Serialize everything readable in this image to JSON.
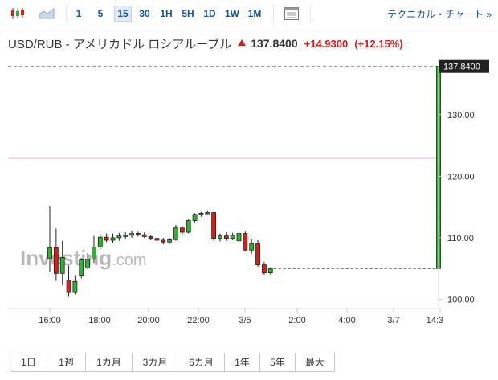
{
  "toolbar": {
    "intervals": [
      "1",
      "5",
      "15",
      "30",
      "1H",
      "5H",
      "1D",
      "1W",
      "1M"
    ],
    "active_interval": "15",
    "technical_link": "テクニカル・チャート »"
  },
  "quote": {
    "symbol": "USD/RUB - アメリカドル ロシアルーブル",
    "last": "137.8400",
    "change": "+14.9300",
    "change_pct": "(+12.15%)"
  },
  "colors": {
    "up": "#2bb52b",
    "down": "#d91e18",
    "accent": "#1256a0"
  },
  "watermark": {
    "text": "Investing.com"
  },
  "chart_data": {
    "type": "candlestick",
    "y_ticks": [
      "130.00",
      "120.00",
      "110.00",
      "100.00"
    ],
    "y_range": [
      98.5,
      139.5
    ],
    "x_ticks": [
      "16:00",
      "18:00",
      "20:00",
      "22:00",
      "3/5",
      "2:00",
      "4:00",
      "3/7",
      "14:3"
    ],
    "last_price_label": "137.8400",
    "last_price": 137.84,
    "previous_close_line": 122.9,
    "candles": [
      {
        "o": 106.6,
        "h": 115.1,
        "l": 104.5,
        "c": 108.4
      },
      {
        "o": 108.4,
        "h": 111.5,
        "l": 103.0,
        "c": 104.2
      },
      {
        "o": 104.2,
        "h": 109.5,
        "l": 102.3,
        "c": 106.8
      },
      {
        "o": 103.1,
        "h": 105.5,
        "l": 100.4,
        "c": 101.1
      },
      {
        "o": 101.1,
        "h": 103.9,
        "l": 100.8,
        "c": 102.9
      },
      {
        "o": 103.9,
        "h": 106.7,
        "l": 103.4,
        "c": 106.4
      },
      {
        "o": 105.1,
        "h": 107.5,
        "l": 104.9,
        "c": 106.5
      },
      {
        "o": 106.5,
        "h": 110.3,
        "l": 105.9,
        "c": 108.5
      },
      {
        "o": 108.5,
        "h": 110.6,
        "l": 108.1,
        "c": 110.1
      },
      {
        "o": 110.1,
        "h": 110.7,
        "l": 109.3,
        "c": 109.6
      },
      {
        "o": 109.6,
        "h": 110.7,
        "l": 109.2,
        "c": 110.0
      },
      {
        "o": 110.0,
        "h": 110.8,
        "l": 109.5,
        "c": 110.3
      },
      {
        "o": 110.3,
        "h": 110.9,
        "l": 109.8,
        "c": 110.4
      },
      {
        "o": 110.4,
        "h": 111.2,
        "l": 110.0,
        "c": 110.7
      },
      {
        "o": 110.7,
        "h": 111.0,
        "l": 110.2,
        "c": 110.5
      },
      {
        "o": 110.5,
        "h": 110.9,
        "l": 110.0,
        "c": 110.2
      },
      {
        "o": 110.2,
        "h": 110.5,
        "l": 109.6,
        "c": 109.9
      },
      {
        "o": 109.9,
        "h": 110.2,
        "l": 109.3,
        "c": 109.6
      },
      {
        "o": 109.6,
        "h": 110.0,
        "l": 108.9,
        "c": 109.3
      },
      {
        "o": 109.3,
        "h": 110.0,
        "l": 109.0,
        "c": 109.7
      },
      {
        "o": 109.7,
        "h": 112.1,
        "l": 109.5,
        "c": 111.6
      },
      {
        "o": 111.6,
        "h": 111.9,
        "l": 110.4,
        "c": 110.9
      },
      {
        "o": 110.9,
        "h": 113.1,
        "l": 110.7,
        "c": 112.8
      },
      {
        "o": 112.8,
        "h": 114.0,
        "l": 112.5,
        "c": 113.8
      },
      {
        "o": 113.8,
        "h": 114.2,
        "l": 113.4,
        "c": 114.0
      },
      {
        "o": 114.0,
        "h": 114.3,
        "l": 113.8,
        "c": 114.1
      },
      {
        "o": 114.1,
        "h": 114.2,
        "l": 109.5,
        "c": 109.9
      },
      {
        "o": 109.9,
        "h": 110.7,
        "l": 109.4,
        "c": 110.3
      },
      {
        "o": 110.3,
        "h": 110.9,
        "l": 109.5,
        "c": 109.9
      },
      {
        "o": 109.9,
        "h": 110.8,
        "l": 109.6,
        "c": 110.4
      },
      {
        "o": 109.5,
        "h": 112.3,
        "l": 108.9,
        "c": 110.7
      },
      {
        "o": 110.7,
        "h": 111.0,
        "l": 107.8,
        "c": 108.0
      },
      {
        "o": 108.0,
        "h": 109.8,
        "l": 107.4,
        "c": 109.0
      },
      {
        "o": 109.0,
        "h": 109.6,
        "l": 105.3,
        "c": 105.6
      },
      {
        "o": 105.6,
        "h": 106.1,
        "l": 104.0,
        "c": 104.3
      },
      {
        "o": 104.3,
        "h": 105.2,
        "l": 104.0,
        "c": 105.0
      }
    ],
    "spike_candle": {
      "o": 105.0,
      "h": 137.84,
      "l": 105.0,
      "c": 137.84
    }
  },
  "ranges": [
    "1日",
    "1週",
    "1カ月",
    "3カ月",
    "6カ月",
    "1年",
    "5年",
    "最大"
  ]
}
